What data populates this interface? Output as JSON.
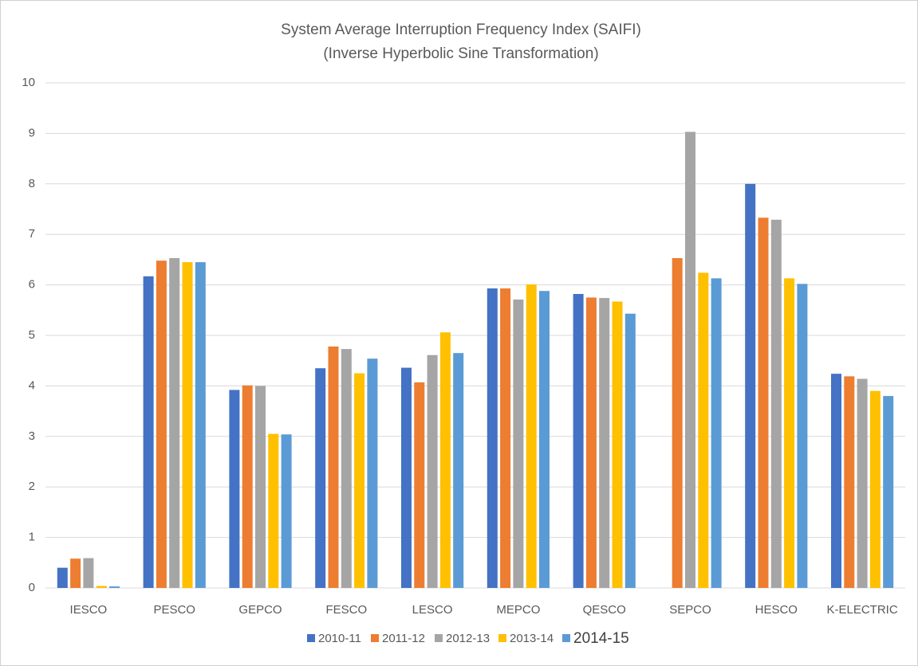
{
  "chart_data": {
    "type": "bar",
    "title": "System Average Interruption Frequency Index (SAIFI)",
    "subtitle": "(Inverse Hyperbolic Sine Transformation)",
    "categories": [
      "IESCO",
      "PESCO",
      "GEPCO",
      "FESCO",
      "LESCO",
      "MEPCO",
      "QESCO",
      "SEPCO",
      "HESCO",
      "K-ELECTRIC"
    ],
    "series": [
      {
        "name": "2010-11",
        "color": "#4472c4",
        "values": [
          0.4,
          6.17,
          3.92,
          4.35,
          4.36,
          5.93,
          5.82,
          null,
          8.0,
          4.24
        ]
      },
      {
        "name": "2011-12",
        "color": "#ed7d31",
        "values": [
          0.58,
          6.48,
          4.01,
          4.78,
          4.07,
          5.93,
          5.75,
          6.53,
          7.33,
          4.19
        ]
      },
      {
        "name": "2012-13",
        "color": "#a5a5a5",
        "values": [
          0.59,
          6.53,
          4.0,
          4.73,
          4.61,
          5.71,
          5.74,
          9.03,
          7.29,
          4.14
        ]
      },
      {
        "name": "2013-14",
        "color": "#ffc000",
        "values": [
          0.04,
          6.45,
          3.05,
          4.25,
          5.06,
          6.01,
          5.67,
          6.24,
          6.13,
          3.9
        ]
      },
      {
        "name": "2014-15",
        "color": "#5b9bd5",
        "values": [
          0.03,
          6.45,
          3.04,
          4.54,
          4.65,
          5.88,
          5.43,
          6.13,
          6.02,
          3.8
        ]
      }
    ],
    "ylim": [
      0,
      10
    ],
    "yticks": [
      0,
      1,
      2,
      3,
      4,
      5,
      6,
      7,
      8,
      9,
      10
    ],
    "grid": true,
    "legend": "bottom"
  }
}
